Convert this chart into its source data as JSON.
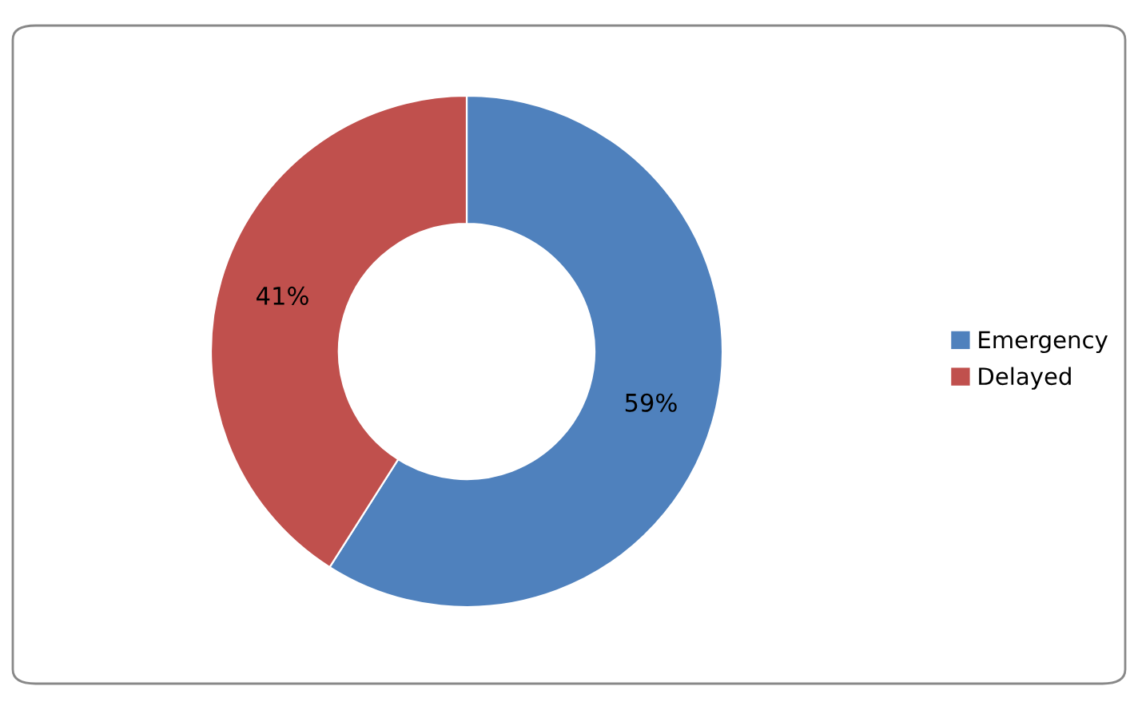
{
  "chart_data": {
    "type": "donut",
    "categories": [
      "Emergency",
      "Delayed"
    ],
    "values": [
      59,
      41
    ],
    "colors": [
      "#4f81bd",
      "#c0504d"
    ],
    "value_labels": [
      "59%",
      "41%"
    ],
    "legend": "right"
  }
}
